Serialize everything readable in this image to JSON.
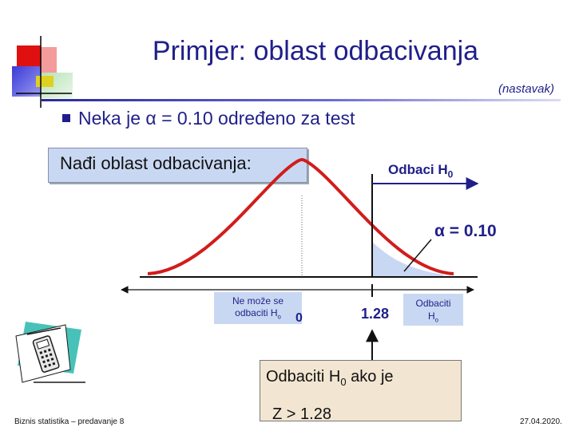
{
  "slide": {
    "title": "Primjer: oblast odbacivanja",
    "subtitle": "(nastavak)",
    "bullet_pre": "Neka je",
    "bullet_symbol": "α",
    "bullet_post": "= 0.10 određeno za test"
  },
  "find_box": {
    "text": "Nađi oblast odbacivanja:"
  },
  "chart_labels": {
    "reject_h0": "Odbaci H",
    "reject_h0_sub": "0",
    "alpha_symbol": "α",
    "alpha_value": "= 0.10",
    "cannot_reject_line1": "Ne može se",
    "cannot_reject_line2": "odbaciti H",
    "cannot_reject_sub": "o",
    "zero": "0",
    "critical": "1.28",
    "reject_small_line1": "Odbaciti",
    "reject_small_line2": "H",
    "reject_small_sub": "o"
  },
  "answer_box": {
    "line1_pre": "Odbaciti H",
    "line1_sub": "0",
    "line1_post": " ako je",
    "line2": "Z > 1.28"
  },
  "footer": {
    "left": "Biznis statistika – predavanje 8",
    "right": "27.04.2020."
  },
  "colors": {
    "title": "#1f1f8a",
    "curve": "#d21c1c",
    "tail_fill": "#c9d8f2",
    "box_fill": "#c9d8f2",
    "answer_fill": "#f2e6d2"
  },
  "icons": [
    "corner-decoration-squares",
    "calculator-clipart-icon"
  ]
}
